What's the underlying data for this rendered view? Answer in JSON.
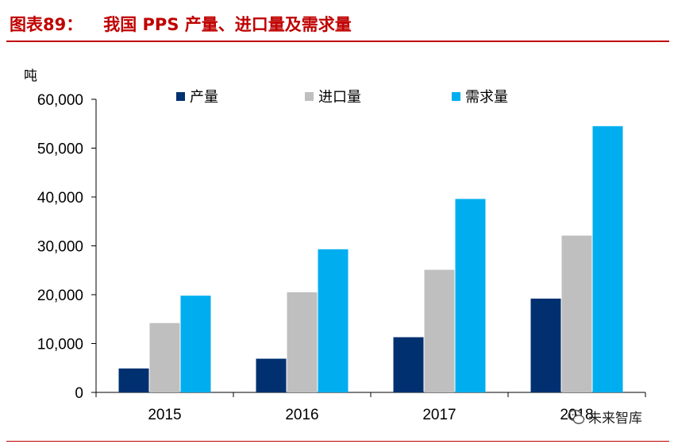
{
  "header": {
    "figure_label": "图表89：",
    "title": "我国 PPS 产量、进口量及需求量"
  },
  "watermark": {
    "text": "未来智库",
    "icon": "wechat-icon"
  },
  "chart_data": {
    "type": "bar",
    "title": "",
    "xlabel": "",
    "ylabel": "吨",
    "ylim": [
      0,
      60000
    ],
    "yticks": [
      0,
      10000,
      20000,
      30000,
      40000,
      50000,
      60000
    ],
    "ytick_labels": [
      "0",
      "10,000",
      "20,000",
      "30,000",
      "40,000",
      "50,000",
      "60,000"
    ],
    "categories": [
      "2015",
      "2016",
      "2017",
      "2018"
    ],
    "legend_position": "top",
    "grid": false,
    "series": [
      {
        "name": "产量",
        "color": "#003070",
        "values": [
          4900,
          6900,
          11300,
          19200
        ]
      },
      {
        "name": "进口量",
        "color": "#bfbfbf",
        "values": [
          14200,
          20500,
          25100,
          32100
        ]
      },
      {
        "name": "需求量",
        "color": "#00aeef",
        "values": [
          19800,
          29300,
          39600,
          54500
        ]
      }
    ]
  }
}
